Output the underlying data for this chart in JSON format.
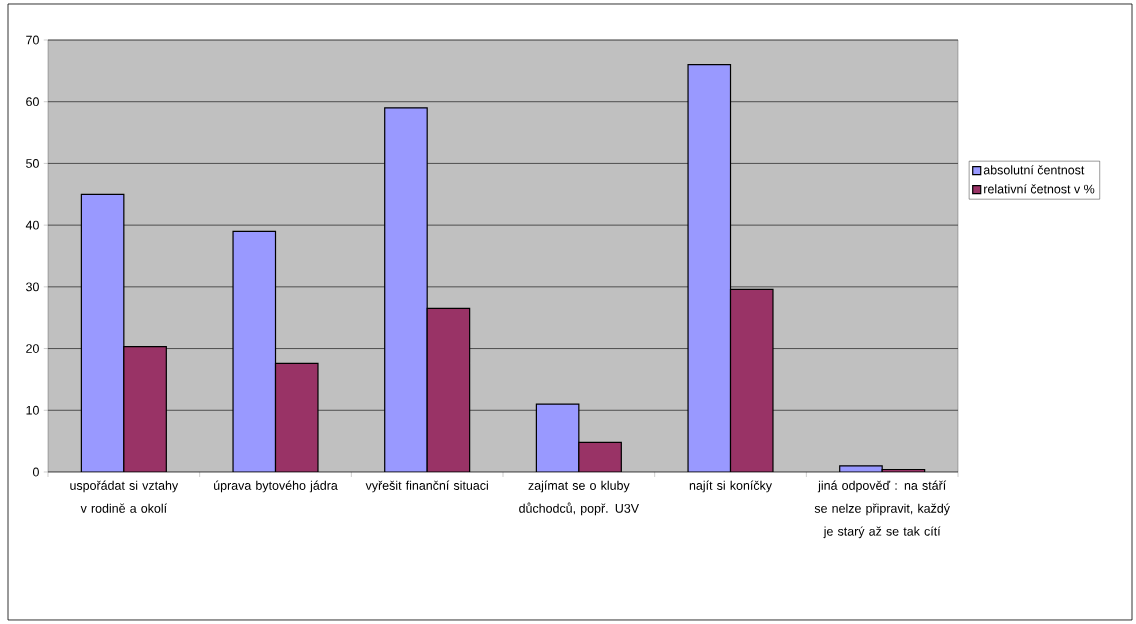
{
  "chart_data": {
    "type": "bar",
    "categories": [
      "uspořádat si vztahy v rodině a okolí",
      "úprava bytového jádra",
      "vyřešit finanční situaci",
      "zajímat se o kluby důchodců, popř. U3V",
      "najít si koníčky",
      "jiná odpověď : na stáří se nelze připravit, každý je starý až se tak cítí"
    ],
    "series": [
      {
        "name": "absolutní čentnost",
        "color": "#9999ff",
        "values": [
          45,
          39,
          59,
          11,
          66,
          1
        ]
      },
      {
        "name": "relativní četnost v %",
        "color": "#993366",
        "values": [
          20.3,
          17.6,
          26.5,
          4.8,
          29.6,
          0.4
        ]
      }
    ],
    "ylim": [
      0,
      70
    ],
    "yticks": [
      0,
      10,
      20,
      30,
      40,
      50,
      60,
      70
    ],
    "grid": "y",
    "legend": "right"
  }
}
